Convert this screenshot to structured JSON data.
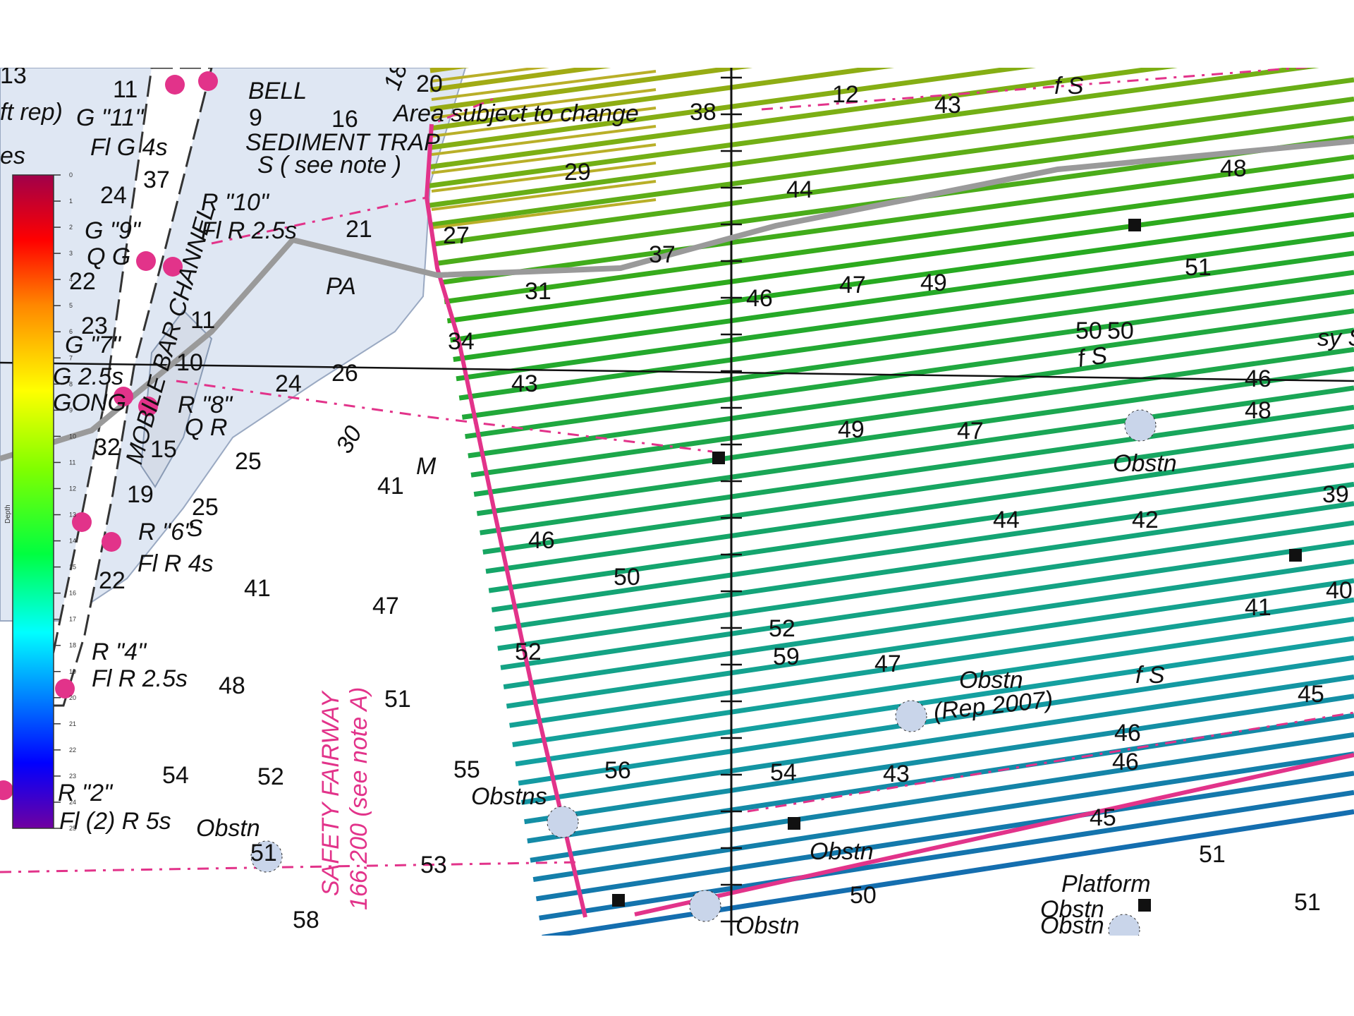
{
  "colors": {
    "water_shallow": "#dfe7f3",
    "land_line": "#8a9bb5",
    "chart_pink": "#e2338a",
    "survey_boundary": "#e2338a",
    "track_gray": "#9a9a9a",
    "axis_black": "#111111"
  },
  "colorbar": {
    "label": "Depth",
    "ticks": [
      "0",
      "1",
      "2",
      "3",
      "4",
      "5",
      "6",
      "7",
      "8",
      "9",
      "10",
      "11",
      "12",
      "13",
      "14",
      "15",
      "16",
      "17",
      "18",
      "19",
      "20",
      "21",
      "22",
      "23",
      "24",
      "25"
    ],
    "range": [
      0,
      25
    ],
    "stops": [
      "#ff00ff",
      "#ff0000",
      "#ff8800",
      "#ffff00",
      "#80ff00",
      "#00ff00",
      "#00ffff",
      "#0066ff",
      "#0000ff",
      "#8000c0"
    ]
  },
  "chart_labels": {
    "soundings": [
      "13",
      "11",
      "24",
      "37",
      "22",
      "23",
      "10",
      "11",
      "26",
      "24",
      "21",
      "16",
      "9",
      "20",
      "12",
      "43",
      "38",
      "29",
      "27",
      "34",
      "44",
      "31",
      "37",
      "46",
      "47",
      "49",
      "51",
      "48",
      "43",
      "50",
      "41",
      "25",
      "32",
      "15",
      "19",
      "25",
      "22",
      "41",
      "47",
      "48",
      "51",
      "55",
      "52",
      "54",
      "58",
      "51",
      "53",
      "59",
      "56",
      "52",
      "54",
      "43",
      "47",
      "46",
      "45",
      "50",
      "51",
      "46",
      "41",
      "45",
      "40",
      "39",
      "42",
      "44",
      "46",
      "49",
      "47",
      "50",
      "50",
      "48",
      "46",
      "52",
      "51"
    ],
    "aids": [
      {
        "name": "g11",
        "text": "G \"11\""
      },
      {
        "name": "fl-g-4s",
        "text": "Fl G 4s"
      },
      {
        "name": "bell",
        "text": "BELL"
      },
      {
        "name": "r10",
        "text": "R \"10\""
      },
      {
        "name": "fl-r-25s-a",
        "text": "Fl R 2.5s"
      },
      {
        "name": "g9",
        "text": "G \"9\""
      },
      {
        "name": "qg",
        "text": "Q G"
      },
      {
        "name": "g7",
        "text": "G \"7\""
      },
      {
        "name": "g25s",
        "text": "G 2.5s"
      },
      {
        "name": "gong",
        "text": "GONG"
      },
      {
        "name": "r8",
        "text": "R \"8\""
      },
      {
        "name": "qr",
        "text": "Q R"
      },
      {
        "name": "r6",
        "text": "R \"6\""
      },
      {
        "name": "fl-r-4s",
        "text": "Fl R 4s"
      },
      {
        "name": "r4",
        "text": "R \"4\""
      },
      {
        "name": "fl-r-25s-b",
        "text": "Fl R 2.5s"
      },
      {
        "name": "r2",
        "text": "R \"2\""
      },
      {
        "name": "fl2-r-5s",
        "text": "Fl (2) R 5s"
      }
    ],
    "notes": [
      {
        "name": "ft-rep",
        "text": "ft rep)"
      },
      {
        "name": "es",
        "text": "es"
      },
      {
        "name": "sediment-trap",
        "text": "SEDIMENT TRAP"
      },
      {
        "name": "s-see-note",
        "text": "S ( see note )"
      },
      {
        "name": "area-subject",
        "text": "Area subject to change"
      },
      {
        "name": "pa",
        "text": "PA"
      },
      {
        "name": "channel",
        "text": "MOBILE BAR CHANNEL"
      },
      {
        "name": "s-label",
        "text": "S"
      },
      {
        "name": "m-label",
        "text": "M"
      },
      {
        "name": "fs-1",
        "text": "f S"
      },
      {
        "name": "fs-2",
        "text": "f S"
      },
      {
        "name": "fs-3",
        "text": "f S"
      },
      {
        "name": "sys",
        "text": "sy S"
      },
      {
        "name": "obstn-1",
        "text": "Obstn"
      },
      {
        "name": "obstn-2",
        "text": "Obstn"
      },
      {
        "name": "obstn-rep",
        "text": "Obstn"
      },
      {
        "name": "rep-2007",
        "text": "(Rep 2007)"
      },
      {
        "name": "obstns",
        "text": "Obstns"
      },
      {
        "name": "obstn-3",
        "text": "Obstn"
      },
      {
        "name": "obstn-4",
        "text": "Obstn"
      },
      {
        "name": "obstn-5",
        "text": "Obstn"
      },
      {
        "name": "obstn-6",
        "text": "Obstn"
      },
      {
        "name": "platform",
        "text": "Platform"
      },
      {
        "name": "contour-18",
        "text": "18"
      },
      {
        "name": "contour-30",
        "text": "30"
      }
    ],
    "fairway_line1": "SAFETY  FAIRWAY",
    "fairway_line2": "166.200 (see note A)"
  }
}
